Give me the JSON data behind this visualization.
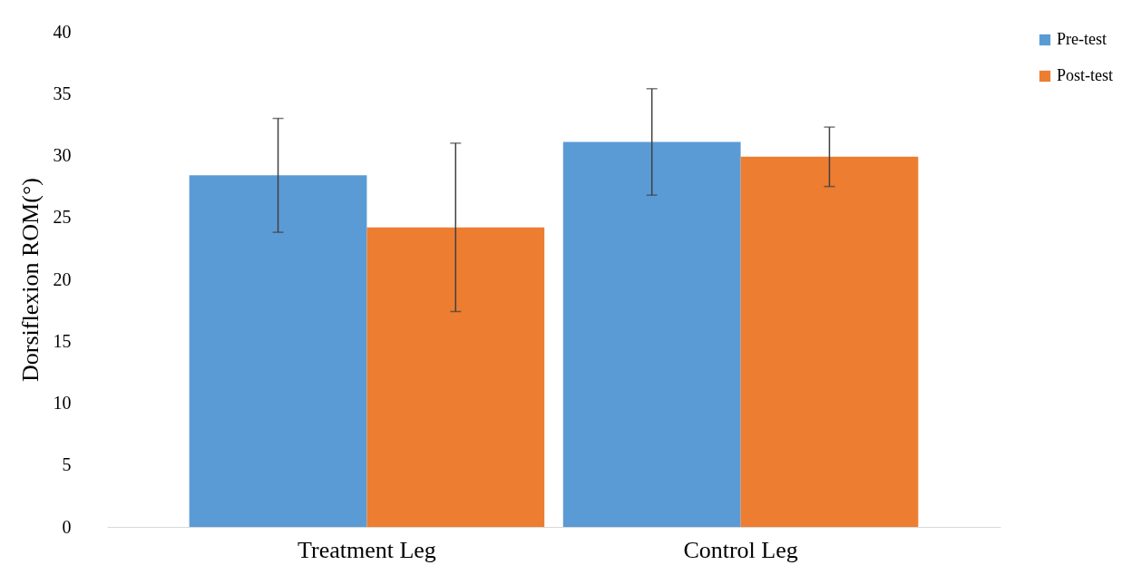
{
  "chart_data": {
    "type": "bar",
    "ylabel": "Dorsiflexion ROM(°)",
    "categories": [
      "Treatment Leg",
      "Control Leg"
    ],
    "series": [
      {
        "name": "Pre-test",
        "color": "#5b9bd5",
        "values": [
          28.4,
          31.1
        ],
        "errors": [
          4.6,
          4.3
        ]
      },
      {
        "name": "Post-test",
        "color": "#ed7d31",
        "values": [
          24.2,
          29.9
        ],
        "errors": [
          6.8,
          2.4
        ]
      }
    ],
    "ylim": [
      0,
      40
    ],
    "yticks": [
      0,
      5,
      10,
      15,
      20,
      25,
      30,
      35,
      40
    ],
    "grid": false,
    "legend": "right"
  }
}
